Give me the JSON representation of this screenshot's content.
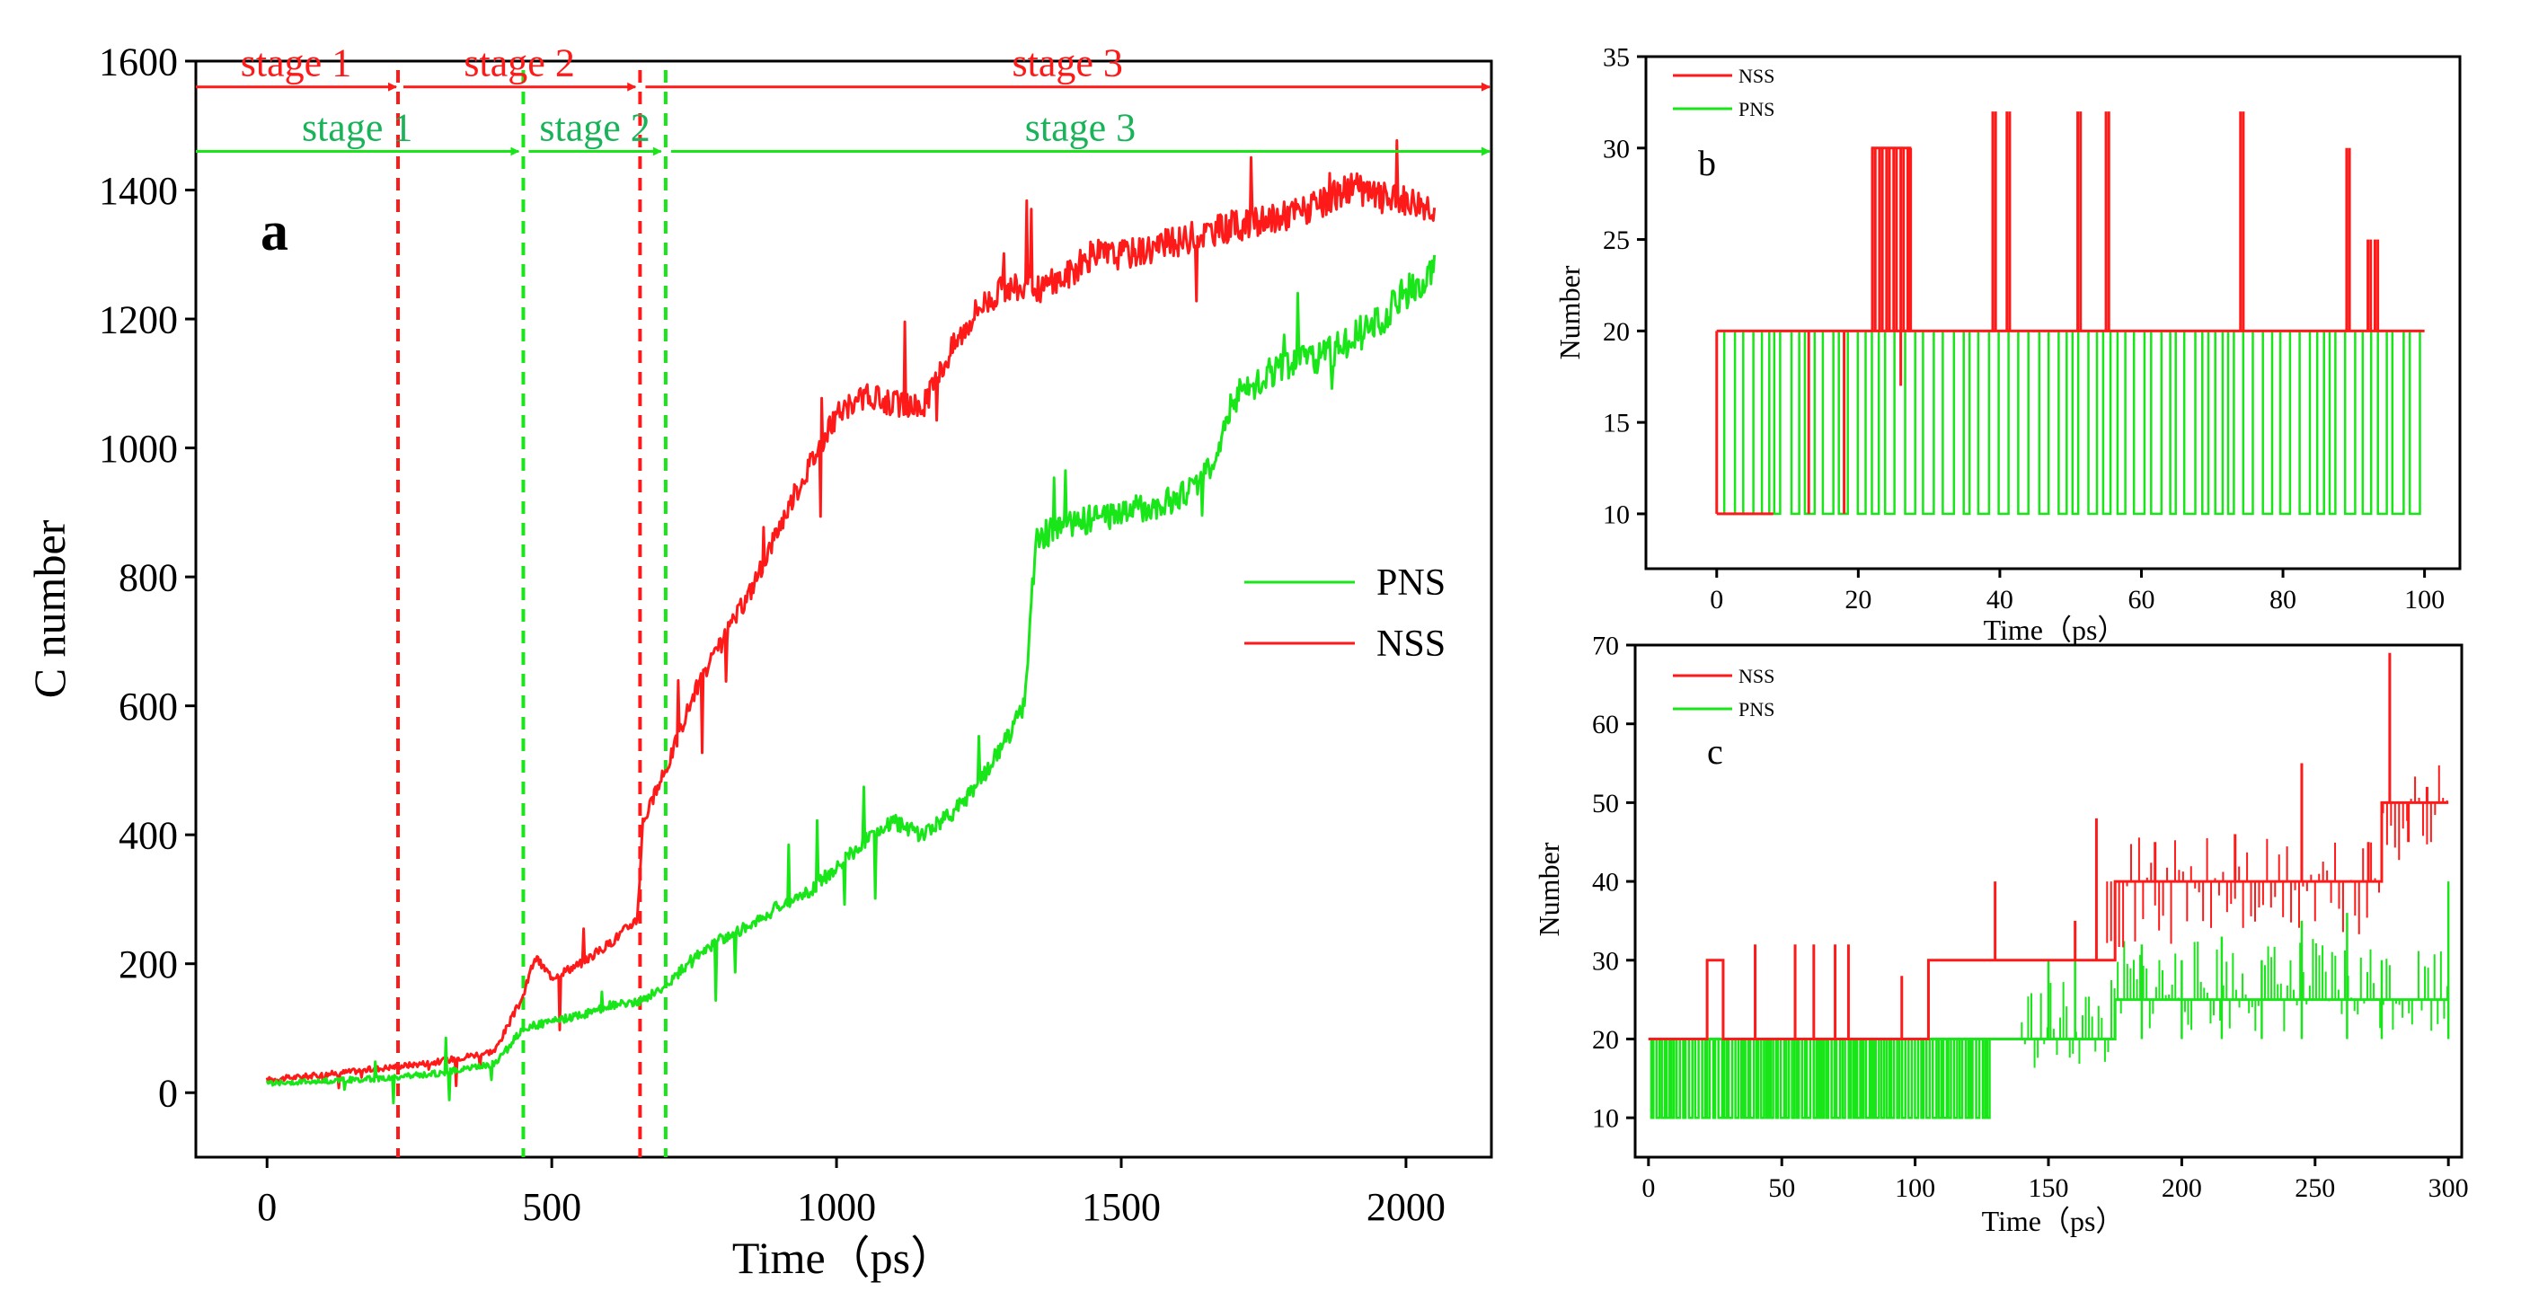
{
  "chart_data": [
    {
      "type": "line",
      "panel_label": "a",
      "title": "",
      "xlabel": "Time（ps）",
      "ylabel": "C number",
      "xlim": [
        -125,
        2150
      ],
      "ylim": [
        -100,
        1600
      ],
      "xticks": [
        0,
        500,
        1000,
        1500,
        2000
      ],
      "yticks": [
        0,
        200,
        400,
        600,
        800,
        1000,
        1200,
        1400,
        1600
      ],
      "legend": {
        "position": "right",
        "entries": [
          "PNS",
          "NSS"
        ]
      },
      "colors": {
        "NSS": "#ff1a1a",
        "PNS": "#19e619",
        "stage_text_green": "#1bb35a"
      },
      "series": [
        {
          "name": "NSS",
          "color": "#ff1a1a",
          "x": [
            0,
            100,
            200,
            300,
            400,
            450,
            470,
            500,
            550,
            600,
            650,
            660,
            700,
            750,
            800,
            850,
            900,
            950,
            1000,
            1050,
            1100,
            1150,
            1200,
            1250,
            1300,
            1350,
            1400,
            1450,
            1500,
            1550,
            1600,
            1650,
            1700,
            1750,
            1800,
            1850,
            1900,
            1950,
            2000,
            2050
          ],
          "y": [
            20,
            28,
            38,
            48,
            65,
            150,
            210,
            180,
            200,
            230,
            270,
            420,
            500,
            620,
            700,
            780,
            880,
            970,
            1050,
            1080,
            1070,
            1060,
            1150,
            1220,
            1250,
            1245,
            1265,
            1300,
            1300,
            1310,
            1320,
            1335,
            1345,
            1350,
            1365,
            1375,
            1405,
            1390,
            1385,
            1375
          ]
        },
        {
          "name": "PNS",
          "color": "#19e619",
          "x": [
            0,
            100,
            200,
            300,
            400,
            450,
            500,
            550,
            600,
            650,
            700,
            750,
            800,
            850,
            900,
            950,
            1000,
            1050,
            1100,
            1150,
            1200,
            1250,
            1300,
            1330,
            1350,
            1400,
            1450,
            1500,
            1550,
            1600,
            1650,
            1700,
            1750,
            1800,
            1850,
            1900,
            1950,
            2000,
            2050
          ],
          "y": [
            15,
            18,
            22,
            30,
            45,
            100,
            110,
            120,
            135,
            140,
            165,
            210,
            240,
            260,
            290,
            310,
            350,
            390,
            420,
            400,
            430,
            480,
            550,
            600,
            860,
            880,
            890,
            900,
            910,
            920,
            960,
            1080,
            1110,
            1130,
            1140,
            1170,
            1190,
            1240,
            1270
          ]
        }
      ],
      "vlines": [
        {
          "x": 230,
          "color": "#ff1a1a"
        },
        {
          "x": 450,
          "color": "#19e619"
        },
        {
          "x": 655,
          "color": "#ff1a1a"
        },
        {
          "x": 700,
          "color": "#19e619"
        }
      ],
      "stage_annotations": [
        {
          "label": "stage 1",
          "series": "NSS",
          "x_start": -125,
          "x_end": 230,
          "y": 1560
        },
        {
          "label": "stage 2",
          "series": "NSS",
          "x_start": 230,
          "x_end": 650,
          "y": 1560
        },
        {
          "label": "stage 3",
          "series": "NSS",
          "x_start": 655,
          "x_end": 2150,
          "y": 1560
        },
        {
          "label": "stage 1",
          "series": "PNS",
          "x_start": -125,
          "x_end": 445,
          "y": 1460
        },
        {
          "label": "stage 2",
          "series": "PNS",
          "x_start": 450,
          "x_end": 695,
          "y": 1460
        },
        {
          "label": "stage 3",
          "series": "PNS",
          "x_start": 700,
          "x_end": 2150,
          "y": 1460
        }
      ]
    },
    {
      "type": "line",
      "panel_label": "b",
      "title": "",
      "xlabel": "Time（ps）",
      "ylabel": "Number",
      "xlim": [
        -10,
        105
      ],
      "ylim": [
        7,
        35
      ],
      "xticks": [
        0,
        20,
        40,
        60,
        80,
        100
      ],
      "yticks": [
        10,
        15,
        20,
        25,
        30,
        35
      ],
      "legend": {
        "position": "top-left",
        "entries": [
          "NSS",
          "PNS"
        ]
      },
      "series": [
        {
          "name": "NSS",
          "color": "#ff1a1a",
          "baseline": 20,
          "spikes": [
            [
              22,
              30
            ],
            [
              23,
              30
            ],
            [
              24,
              30
            ],
            [
              25,
              30
            ],
            [
              26,
              30
            ],
            [
              27,
              30
            ],
            [
              39,
              32
            ],
            [
              41,
              32
            ],
            [
              51,
              32
            ],
            [
              55,
              32
            ],
            [
              74,
              32
            ],
            [
              89,
              30
            ],
            [
              92,
              25
            ],
            [
              93,
              25
            ]
          ],
          "dips": [
            [
              13,
              10
            ],
            [
              18,
              10
            ],
            [
              26,
              17
            ]
          ]
        },
        {
          "name": "PNS",
          "color": "#19e619",
          "high": 20,
          "low": 10,
          "x_start": 0,
          "x_end": 100,
          "period": 1.15
        }
      ]
    },
    {
      "type": "line",
      "panel_label": "c",
      "title": "",
      "xlabel": "Time（ps）",
      "ylabel": "Number",
      "xlim": [
        -5,
        305
      ],
      "ylim": [
        5,
        70
      ],
      "xticks": [
        0,
        50,
        100,
        150,
        200,
        250,
        300
      ],
      "yticks": [
        10,
        20,
        30,
        40,
        50,
        60,
        70
      ],
      "legend": {
        "position": "top-left",
        "entries": [
          "NSS",
          "PNS"
        ]
      },
      "series": [
        {
          "name": "NSS",
          "color": "#ff1a1a",
          "steps": [
            [
              0,
              20
            ],
            [
              22,
              30
            ],
            [
              28,
              20
            ],
            [
              105,
              30
            ],
            [
              175,
              40
            ],
            [
              275,
              50
            ],
            [
              300,
              50
            ]
          ],
          "spikes": [
            [
              40,
              32
            ],
            [
              55,
              32
            ],
            [
              62,
              32
            ],
            [
              70,
              32
            ],
            [
              75,
              32
            ],
            [
              95,
              28
            ],
            [
              130,
              40
            ],
            [
              160,
              35
            ],
            [
              168,
              48
            ],
            [
              190,
              45
            ],
            [
              220,
              46
            ],
            [
              245,
              55
            ],
            [
              270,
              45
            ],
            [
              278,
              69
            ],
            [
              285,
              45
            ],
            [
              292,
              52
            ]
          ]
        },
        {
          "name": "PNS",
          "color": "#19e619",
          "steps": [
            [
              0,
              20
            ],
            [
              128,
              20
            ],
            [
              128,
              20
            ],
            [
              175,
              25
            ],
            [
              250,
              25
            ],
            [
              300,
              25
            ]
          ],
          "dense_low": 10,
          "dense_until": 128,
          "spikes": [
            [
              150,
              30
            ],
            [
              160,
              30
            ],
            [
              185,
              32
            ],
            [
              200,
              30
            ],
            [
              215,
              33
            ],
            [
              230,
              30
            ],
            [
              245,
              35
            ],
            [
              262,
              36
            ],
            [
              275,
              30
            ],
            [
              300,
              40
            ]
          ]
        }
      ]
    }
  ]
}
